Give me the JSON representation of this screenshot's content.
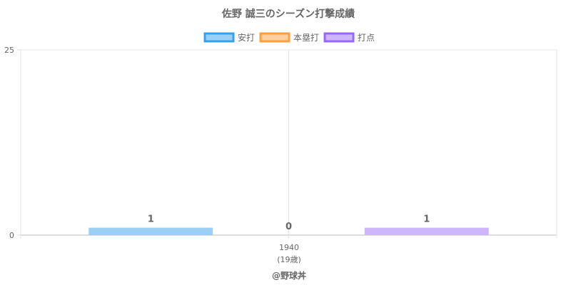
{
  "chart_data": {
    "type": "bar",
    "title": "佐野 誠三のシーズン打撃成績",
    "categories": [
      "1940"
    ],
    "category_sublabels": [
      "(19歳)"
    ],
    "series": [
      {
        "name": "安打",
        "values": [
          1
        ],
        "color": "#9ad0f5",
        "border": "#36a2eb"
      },
      {
        "name": "本塁打",
        "values": [
          0
        ],
        "color": "#ffcf9f",
        "border": "#ff9f40"
      },
      {
        "name": "打点",
        "values": [
          1
        ],
        "color": "#cdb6fc",
        "border": "#9966ff"
      }
    ],
    "ylim": [
      0,
      25
    ],
    "yticks": [
      "0",
      "25"
    ],
    "grid": true,
    "legend": "top",
    "data_labels": true
  },
  "footer": "@野球丼"
}
